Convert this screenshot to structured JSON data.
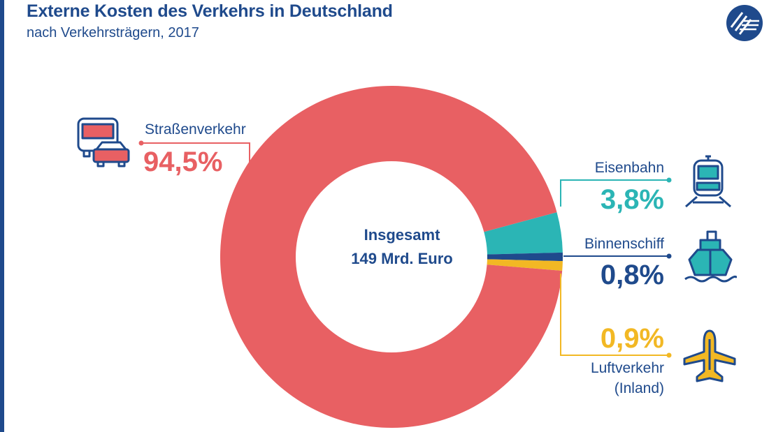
{
  "chart_data": {
    "type": "pie",
    "style": "donut",
    "title": "Externe Kosten des Verkehrs in Deutschland",
    "subtitle": "nach Verkehrsträgern, 2017",
    "center_line1": "Insgesamt",
    "center_line2": "149 Mrd. Euro",
    "slices": [
      {
        "name": "Straßenverkehr",
        "value": 94.5,
        "label": "94,5%",
        "color": "#e86063"
      },
      {
        "name": "Eisenbahn",
        "value": 3.8,
        "label": "3,8%",
        "color": "#2bb5b5"
      },
      {
        "name": "Binnenschiff",
        "value": 0.8,
        "label": "0,8%",
        "color": "#1f4a8c"
      },
      {
        "name": "Luftverkehr",
        "name2": "(Inland)",
        "value": 0.9,
        "label": "0,9%",
        "color": "#f2b824"
      }
    ]
  },
  "icons": {
    "road": "bus-car-icon",
    "rail": "train-icon",
    "ship": "ship-icon",
    "air": "airplane-icon",
    "logo": "logo-icon"
  },
  "colors": {
    "brand": "#1f4a8c"
  }
}
